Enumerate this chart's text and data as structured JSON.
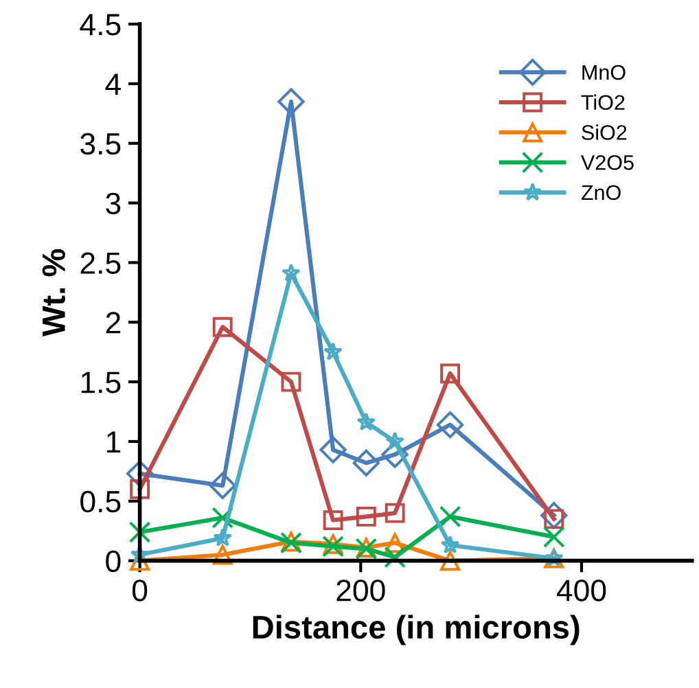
{
  "chart_data": {
    "type": "line",
    "xlabel": "Distance (in microns)",
    "ylabel": "Wt. %",
    "x": [
      0,
      75,
      137,
      175,
      205,
      231,
      281,
      375
    ],
    "xlim": [
      0,
      500
    ],
    "xticks": [
      0,
      200,
      400
    ],
    "ylim": [
      0,
      4.5
    ],
    "yticks": [
      0,
      0.5,
      1,
      1.5,
      2,
      2.5,
      3,
      3.5,
      4,
      4.5
    ],
    "grid": false,
    "legend": "top right",
    "series": [
      {
        "name": "MnO",
        "color": "#4a7ebb",
        "marker": "diamond",
        "values": [
          0.73,
          0.63,
          3.85,
          0.93,
          0.82,
          0.89,
          1.14,
          0.38
        ]
      },
      {
        "name": "TiO2",
        "color": "#be4b48",
        "marker": "square",
        "values": [
          0.6,
          1.96,
          1.5,
          0.34,
          0.37,
          0.4,
          1.57,
          0.35
        ]
      },
      {
        "name": "SiO2",
        "color": "#f07f09",
        "marker": "triangle",
        "values": [
          0.0,
          0.05,
          0.16,
          0.14,
          0.11,
          0.15,
          0.0,
          0.02
        ]
      },
      {
        "name": "V2O5",
        "color": "#00b050",
        "marker": "cross",
        "values": [
          0.24,
          0.36,
          0.15,
          0.12,
          0.1,
          0.03,
          0.37,
          0.2
        ]
      },
      {
        "name": "ZnO",
        "color": "#4bacc6",
        "marker": "star",
        "values": [
          0.05,
          0.19,
          2.41,
          1.75,
          1.16,
          1.0,
          0.13,
          0.02
        ]
      }
    ]
  }
}
